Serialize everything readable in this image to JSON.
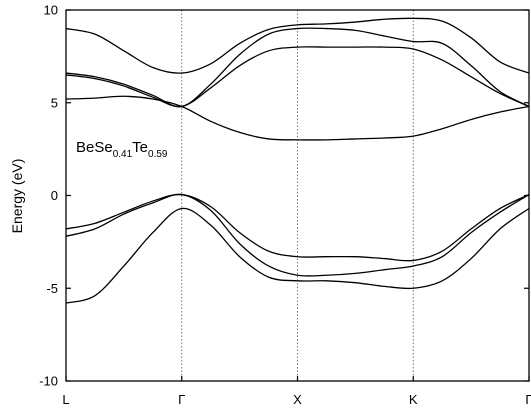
{
  "chart_data": {
    "type": "line",
    "title": "",
    "xlabel": "",
    "ylabel": "Energy (eV)",
    "ylim": [
      -10,
      10
    ],
    "yticks": [
      -10,
      -5,
      0,
      5,
      10
    ],
    "ytick_labels": [
      "-10",
      "-5",
      "0",
      "5",
      "10"
    ],
    "xlim": [
      0,
      4
    ],
    "high_symmetry_points": [
      {
        "label": "L",
        "x": 0
      },
      {
        "label": "Γ",
        "x": 1
      },
      {
        "label": "X",
        "x": 2
      },
      {
        "label": "K",
        "x": 3
      },
      {
        "label": "Γ",
        "x": 4
      }
    ],
    "annotation": {
      "base": "BeSe",
      "sub1": "0.41",
      "mid": "Te",
      "sub2": "0.59"
    },
    "grid": false,
    "series": [
      {
        "x": [
          0,
          0.25,
          0.5,
          0.75,
          1,
          1.25,
          1.5,
          1.75,
          2,
          2.25,
          2.5,
          2.75,
          3,
          3.25,
          3.5,
          3.75,
          4
        ],
        "values": [
          -5.8,
          -5.4,
          -3.8,
          -2.0,
          -0.7,
          -1.6,
          -3.3,
          -4.4,
          -4.6,
          -4.6,
          -4.7,
          -4.9,
          -5.0,
          -4.6,
          -3.4,
          -1.8,
          -0.7
        ]
      },
      {
        "x": [
          0,
          0.25,
          0.5,
          0.75,
          1,
          1.25,
          1.5,
          1.75,
          2,
          2.25,
          2.5,
          2.75,
          3,
          3.25,
          3.5,
          3.75,
          4
        ],
        "values": [
          -2.2,
          -1.8,
          -1.0,
          -0.4,
          0.05,
          -0.8,
          -2.6,
          -3.8,
          -4.3,
          -4.3,
          -4.2,
          -4.0,
          -3.8,
          -3.3,
          -2.0,
          -0.9,
          0.05
        ]
      },
      {
        "x": [
          0,
          0.25,
          0.5,
          0.75,
          1,
          1.25,
          1.5,
          1.75,
          2,
          2.25,
          2.5,
          2.75,
          3,
          3.25,
          3.5,
          3.75,
          4
        ],
        "values": [
          -1.8,
          -1.5,
          -0.9,
          -0.3,
          0.05,
          -0.6,
          -2.0,
          -3.0,
          -3.3,
          -3.3,
          -3.3,
          -3.4,
          -3.5,
          -3.0,
          -1.8,
          -0.7,
          0.05
        ]
      },
      {
        "x": [
          0,
          0.25,
          0.5,
          0.75,
          1,
          1.25,
          1.5,
          1.75,
          2,
          2.25,
          2.5,
          2.75,
          3,
          3.25,
          3.5,
          3.75,
          4
        ],
        "values": [
          5.2,
          5.25,
          5.35,
          5.2,
          4.8,
          4.0,
          3.4,
          3.05,
          3.0,
          3.0,
          3.05,
          3.1,
          3.2,
          3.6,
          4.1,
          4.5,
          4.8
        ]
      },
      {
        "x": [
          0,
          0.25,
          0.5,
          0.75,
          1,
          1.25,
          1.5,
          1.75,
          2,
          2.25,
          2.5,
          2.75,
          3,
          3.25,
          3.5,
          3.75,
          4
        ],
        "values": [
          6.5,
          6.3,
          5.9,
          5.3,
          4.8,
          5.8,
          7.0,
          7.8,
          8.0,
          8.0,
          8.0,
          8.0,
          7.9,
          7.3,
          6.4,
          5.5,
          4.8
        ]
      },
      {
        "x": [
          0,
          0.25,
          0.5,
          0.75,
          1,
          1.25,
          1.5,
          1.75,
          2,
          2.25,
          2.5,
          2.75,
          3,
          3.25,
          3.5,
          3.75,
          4
        ],
        "values": [
          6.6,
          6.4,
          6.0,
          5.4,
          4.8,
          6.0,
          7.6,
          8.7,
          9.0,
          9.0,
          8.9,
          8.6,
          8.3,
          8.2,
          7.0,
          5.6,
          4.8
        ]
      },
      {
        "x": [
          0,
          0.25,
          0.5,
          0.75,
          1,
          1.25,
          1.5,
          1.75,
          2,
          2.25,
          2.5,
          2.75,
          3,
          3.25,
          3.5,
          3.75,
          4
        ],
        "values": [
          9.0,
          8.7,
          7.8,
          6.9,
          6.6,
          7.1,
          8.2,
          8.95,
          9.2,
          9.25,
          9.35,
          9.5,
          9.55,
          9.4,
          8.5,
          7.2,
          6.6
        ]
      }
    ]
  }
}
